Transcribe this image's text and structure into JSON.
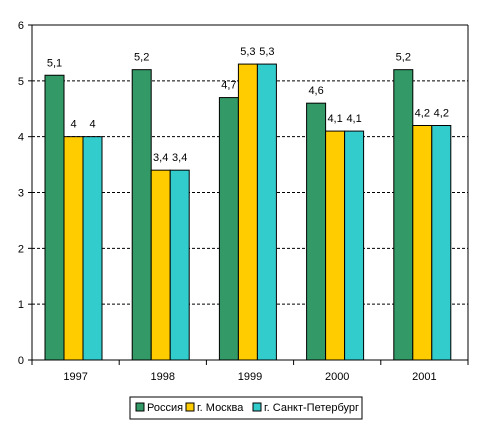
{
  "chart_data": {
    "type": "bar",
    "categories": [
      "1997",
      "1998",
      "1999",
      "2000",
      "2001"
    ],
    "series": [
      {
        "name": "Россия",
        "values": [
          5.1,
          5.2,
          4.7,
          4.6,
          5.2
        ],
        "labels": [
          "5,1",
          "5,2",
          "4,7",
          "4,6",
          "5,2"
        ],
        "color": "#339966"
      },
      {
        "name": "г. Москва",
        "values": [
          4,
          3.4,
          5.3,
          4.1,
          4.2
        ],
        "labels": [
          "4",
          "3,4",
          "5,3",
          "4,1",
          "4,2"
        ],
        "color": "#FFCC00"
      },
      {
        "name": "г. Санкт-Петербург",
        "values": [
          4,
          3.4,
          5.3,
          4.1,
          4.2
        ],
        "labels": [
          "4",
          "3,4",
          "5,3",
          "4,1",
          "4,2"
        ],
        "color": "#33CCCC"
      }
    ],
    "ylim": [
      0,
      6
    ],
    "yticks": [
      0,
      1,
      2,
      3,
      4,
      5,
      6
    ],
    "ytick_labels": [
      "0",
      "1",
      "2",
      "3",
      "4",
      "5",
      "6"
    ],
    "grid": "horizontal dashed",
    "legend_position": "bottom",
    "title": "",
    "xlabel": "",
    "ylabel": ""
  }
}
